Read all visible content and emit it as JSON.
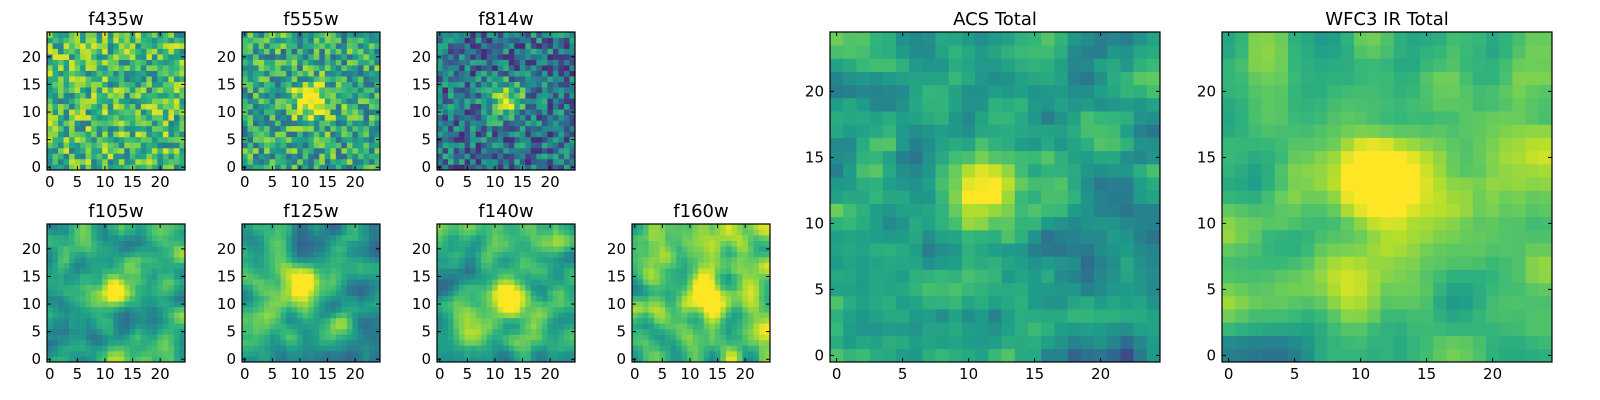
{
  "figure": {
    "colormap": "viridis"
  },
  "chart_data": [
    {
      "type": "heatmap",
      "title": "f435w",
      "grid": [
        25,
        25
      ],
      "xlim": [
        0,
        24
      ],
      "ylim": [
        0,
        24
      ],
      "xticks": [
        0,
        5,
        10,
        15,
        20
      ],
      "yticks": [
        0,
        5,
        10,
        15,
        20
      ],
      "xticklabels": [
        "0",
        "5",
        "10",
        "15",
        "20"
      ],
      "yticklabels": [
        "0",
        "5",
        "10",
        "15",
        "20"
      ],
      "source_peak": null,
      "noise": "high",
      "base": 0.68,
      "seed": 11
    },
    {
      "type": "heatmap",
      "title": "f555w",
      "grid": [
        25,
        25
      ],
      "xlim": [
        0,
        24
      ],
      "ylim": [
        0,
        24
      ],
      "xticks": [
        0,
        5,
        10,
        15,
        20
      ],
      "yticks": [
        0,
        5,
        10,
        15,
        20
      ],
      "xticklabels": [
        "0",
        "5",
        "10",
        "15",
        "20"
      ],
      "yticklabels": [
        "0",
        "5",
        "10",
        "15",
        "20"
      ],
      "source_peak": [
        12,
        12
      ],
      "noise": "high",
      "base": 0.6,
      "seed": 23
    },
    {
      "type": "heatmap",
      "title": "f814w",
      "grid": [
        25,
        25
      ],
      "xlim": [
        0,
        24
      ],
      "ylim": [
        0,
        24
      ],
      "xticks": [
        0,
        5,
        10,
        15,
        20
      ],
      "yticks": [
        0,
        5,
        10,
        15,
        20
      ],
      "xticklabels": [
        "0",
        "5",
        "10",
        "15",
        "20"
      ],
      "yticklabels": [
        "0",
        "5",
        "10",
        "15",
        "20"
      ],
      "source_peak": [
        12,
        12
      ],
      "noise": "high",
      "base": 0.38,
      "seed": 37
    },
    {
      "type": "heatmap",
      "title": "f105w",
      "grid": [
        25,
        25
      ],
      "xlim": [
        0,
        24
      ],
      "ylim": [
        0,
        24
      ],
      "xticks": [
        0,
        5,
        10,
        15,
        20
      ],
      "yticks": [
        0,
        5,
        10,
        15,
        20
      ],
      "xticklabels": [
        "0",
        "5",
        "10",
        "15",
        "20"
      ],
      "yticklabels": [
        "0",
        "5",
        "10",
        "15",
        "20"
      ],
      "source_peak": [
        12,
        13
      ],
      "noise": "smooth",
      "base": 0.62,
      "seed": 41
    },
    {
      "type": "heatmap",
      "title": "f125w",
      "grid": [
        25,
        25
      ],
      "xlim": [
        0,
        24
      ],
      "ylim": [
        0,
        24
      ],
      "xticks": [
        0,
        5,
        10,
        15,
        20
      ],
      "yticks": [
        0,
        5,
        10,
        15,
        20
      ],
      "xticklabels": [
        "0",
        "5",
        "10",
        "15",
        "20"
      ],
      "yticklabels": [
        "0",
        "5",
        "10",
        "15",
        "20"
      ],
      "source_peak": [
        10,
        13
      ],
      "noise": "smooth",
      "base": 0.58,
      "seed": 53
    },
    {
      "type": "heatmap",
      "title": "f140w",
      "grid": [
        25,
        25
      ],
      "xlim": [
        0,
        24
      ],
      "ylim": [
        0,
        24
      ],
      "xticks": [
        0,
        5,
        10,
        15,
        20
      ],
      "yticks": [
        0,
        5,
        10,
        15,
        20
      ],
      "xticklabels": [
        "0",
        "5",
        "10",
        "15",
        "20"
      ],
      "yticklabels": [
        "0",
        "5",
        "10",
        "15",
        "20"
      ],
      "source_peak": [
        12,
        11
      ],
      "noise": "smooth",
      "base": 0.62,
      "seed": 67
    },
    {
      "type": "heatmap",
      "title": "f160w",
      "grid": [
        25,
        25
      ],
      "xlim": [
        0,
        24
      ],
      "ylim": [
        0,
        24
      ],
      "xticks": [
        0,
        5,
        10,
        15,
        20
      ],
      "yticks": [
        0,
        5,
        10,
        15,
        20
      ],
      "xticklabels": [
        "0",
        "5",
        "10",
        "15",
        "20"
      ],
      "yticklabels": [
        "0",
        "5",
        "10",
        "15",
        "20"
      ],
      "source_peak": [
        13,
        12
      ],
      "noise": "smooth",
      "base": 0.72,
      "seed": 79
    },
    {
      "type": "heatmap",
      "title": "ACS Total",
      "grid": [
        25,
        25
      ],
      "xlim": [
        0,
        24
      ],
      "ylim": [
        0,
        24
      ],
      "xticks": [
        0,
        5,
        10,
        15,
        20
      ],
      "yticks": [
        0,
        5,
        10,
        15,
        20
      ],
      "xticklabels": [
        "0",
        "5",
        "10",
        "15",
        "20"
      ],
      "yticklabels": [
        "0",
        "5",
        "10",
        "15",
        "20"
      ],
      "source_peak": [
        12,
        12
      ],
      "noise": "medium",
      "base": 0.5,
      "seed": 83
    },
    {
      "type": "heatmap",
      "title": "WFC3 IR Total",
      "grid": [
        25,
        25
      ],
      "xlim": [
        0,
        24
      ],
      "ylim": [
        0,
        24
      ],
      "xticks": [
        0,
        5,
        10,
        15,
        20
      ],
      "yticks": [
        0,
        5,
        10,
        15,
        20
      ],
      "xticklabels": [
        "0",
        "5",
        "10",
        "15",
        "20"
      ],
      "yticklabels": [
        "0",
        "5",
        "10",
        "15",
        "20"
      ],
      "source_peak": [
        12,
        13
      ],
      "noise": "smooth",
      "base": 0.66,
      "seed": 97
    }
  ]
}
